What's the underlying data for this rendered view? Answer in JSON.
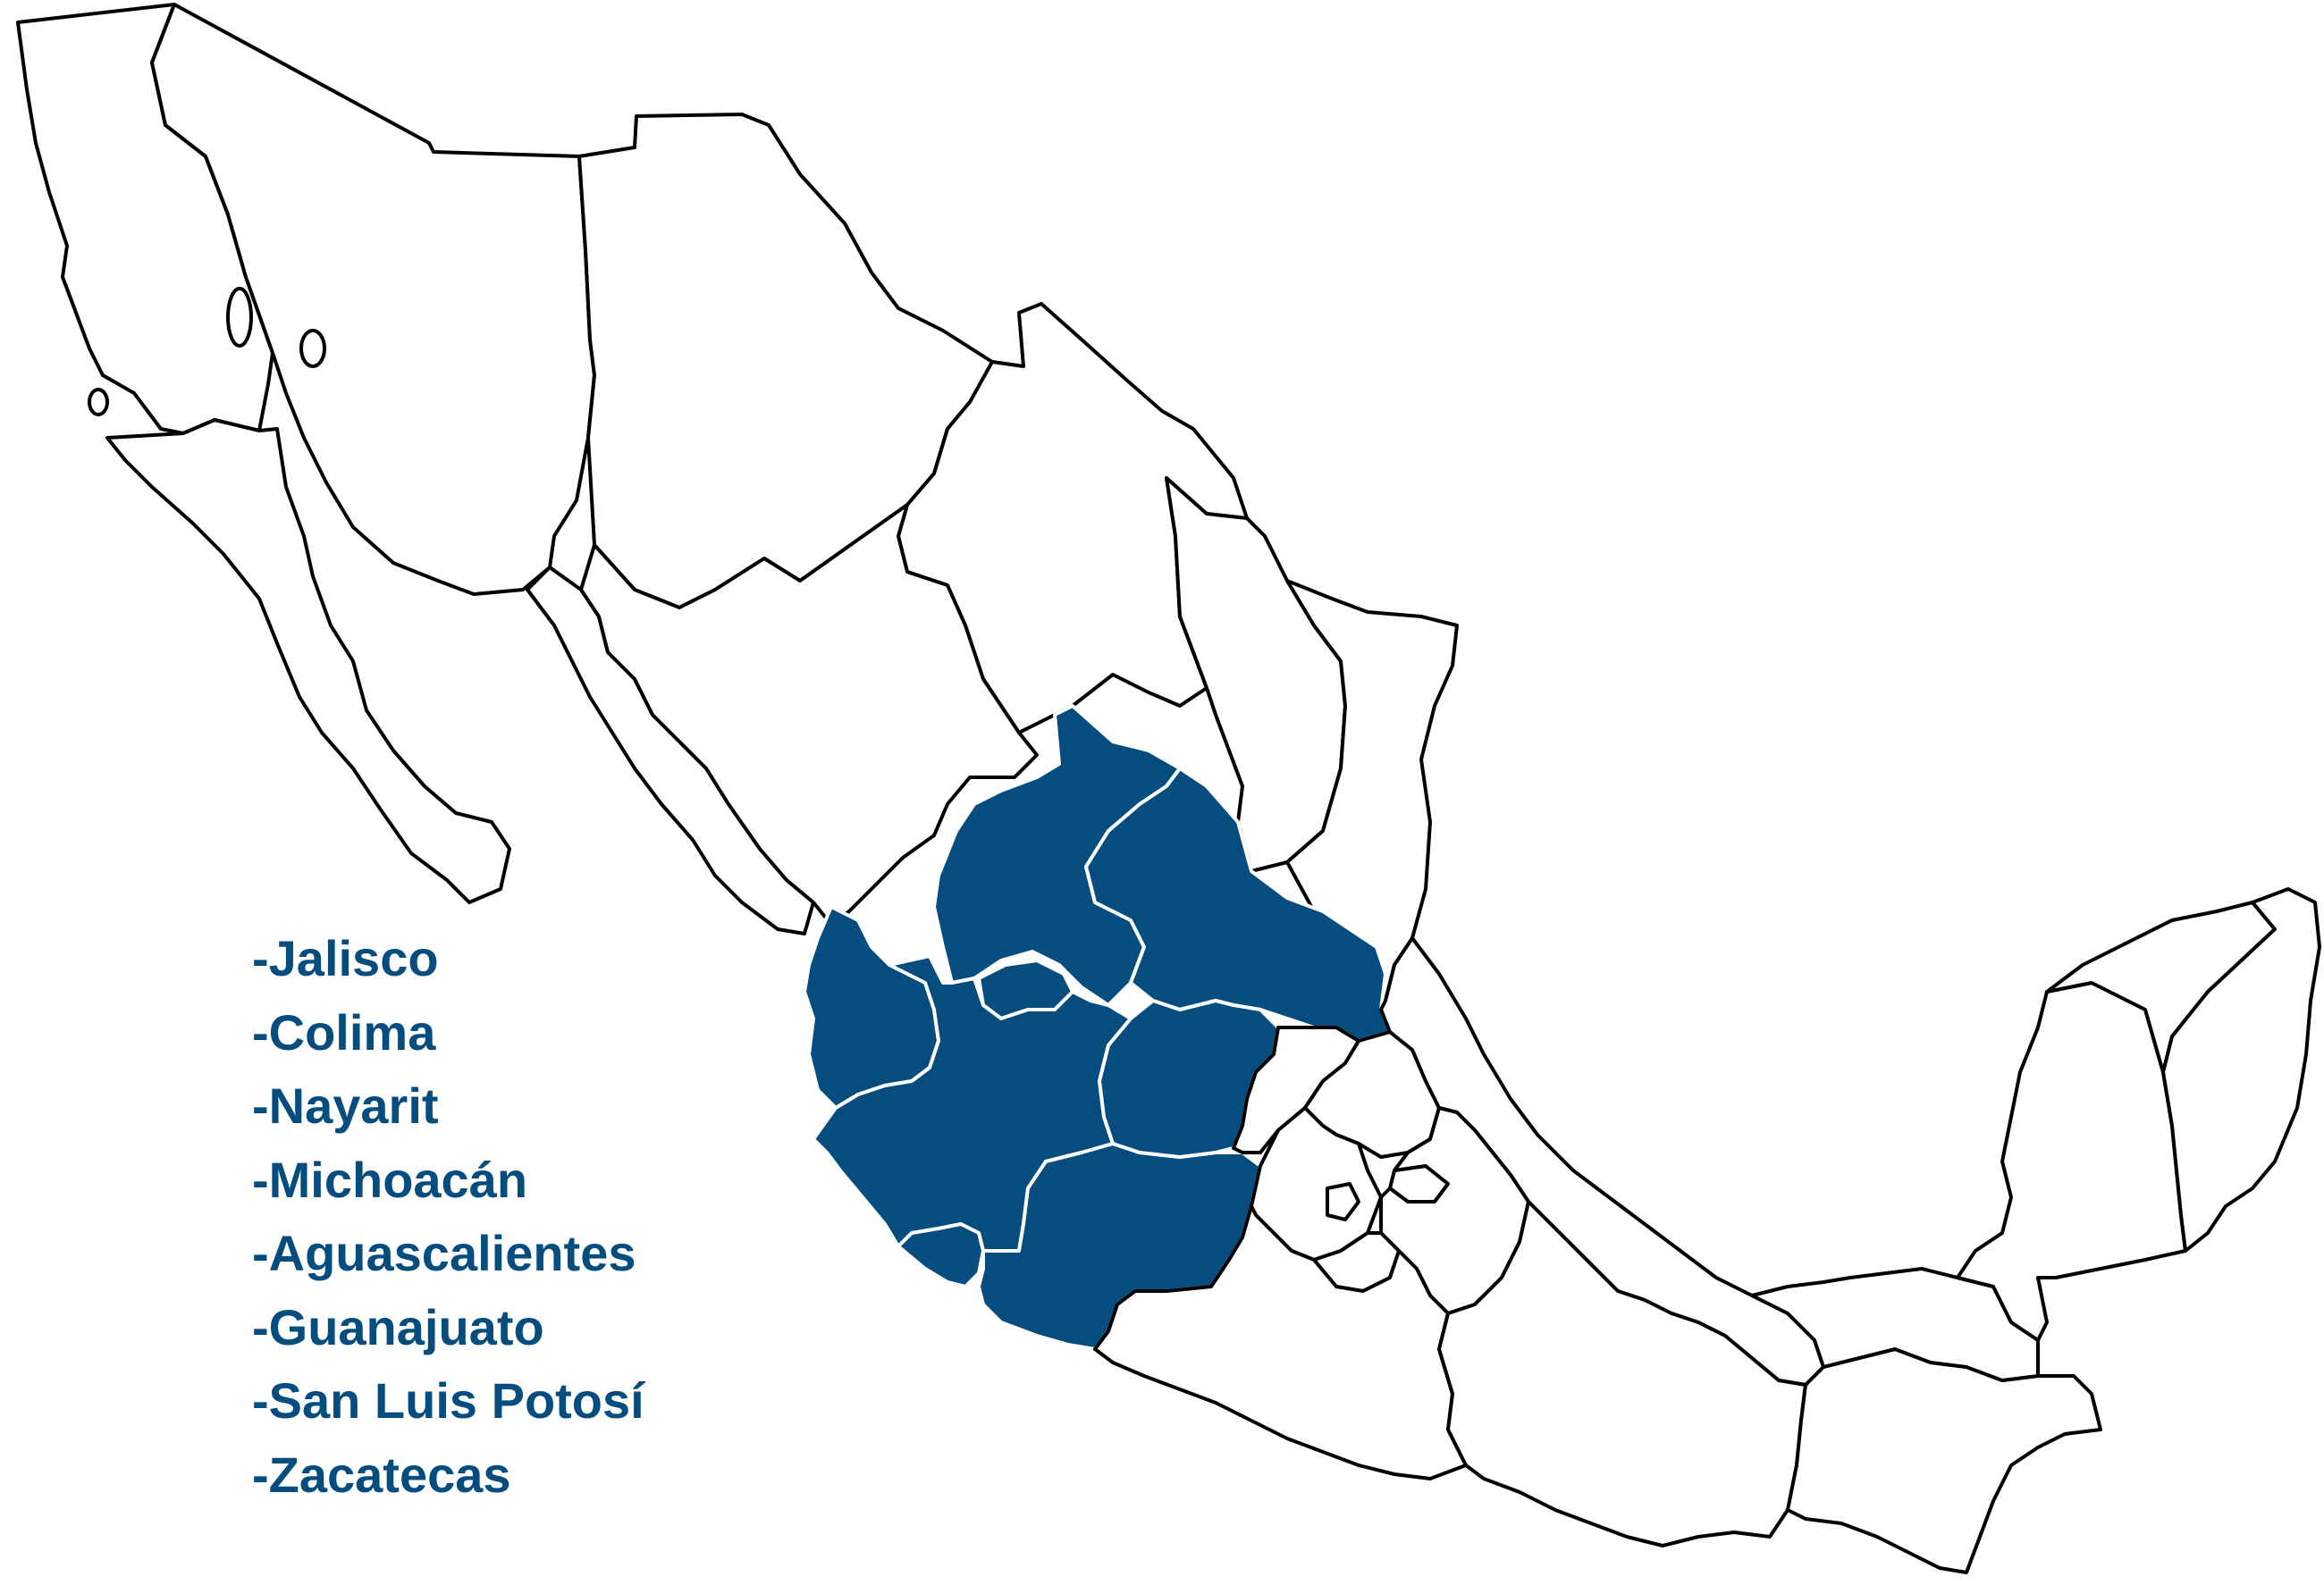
{
  "map": {
    "country": "Mexico",
    "highlight_color": "#054d7e",
    "outline_color": "#000000",
    "background_color": "#ffffff",
    "highlighted_states": [
      "Jalisco",
      "Colima",
      "Nayarit",
      "Michoacán",
      "Aguascalientes",
      "Guanajuato",
      "San Luis Potosí",
      "Zacatecas"
    ]
  },
  "legend": {
    "items": [
      "-Jalisco",
      "-Colima",
      "-Nayarit",
      "-Michoacán",
      "-Aguascalientes",
      "-Guanajuato",
      "-San Luis Potosí",
      "-Zacatecas"
    ]
  }
}
